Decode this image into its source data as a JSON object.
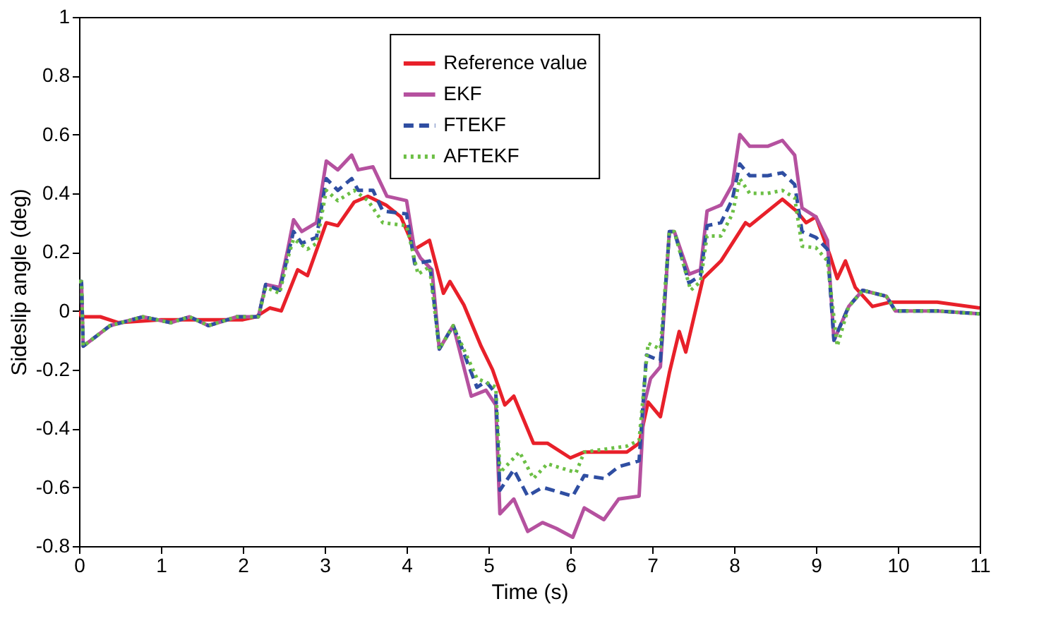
{
  "chart_data": {
    "type": "line",
    "xlabel": "Time (s)",
    "ylabel": "Sideslip angle (deg)",
    "xlim": [
      0,
      11
    ],
    "ylim": [
      -0.8,
      1
    ],
    "xticks": [
      0,
      1,
      2,
      3,
      4,
      5,
      6,
      7,
      8,
      9,
      10,
      11
    ],
    "yticks": [
      -0.8,
      -0.6,
      -0.4,
      -0.2,
      0,
      0.2,
      0.4,
      0.6,
      0.8,
      1
    ],
    "grid": false,
    "legend": "top",
    "marker": "none",
    "series": [
      {
        "name": "Reference value",
        "color": "#e8202a",
        "line_style": "solid",
        "x": [
          0,
          0.03,
          0.26,
          0.48,
          1,
          1.5,
          2,
          2.16,
          2.33,
          2.47,
          2.67,
          2.79,
          3.02,
          3.16,
          3.36,
          3.53,
          3.75,
          3.93,
          4.1,
          4.28,
          4.45,
          4.53,
          4.7,
          4.91,
          5.05,
          5.2,
          5.31,
          5.55,
          5.72,
          6.0,
          6.17,
          6.69,
          6.84,
          6.95,
          7.1,
          7.21,
          7.33,
          7.41,
          7.62,
          7.84,
          8.14,
          8.19,
          8.59,
          8.76,
          8.88,
          9.0,
          9.17,
          9.26,
          9.36,
          9.48,
          9.69,
          9.91,
          10.48,
          11
        ],
        "values": [
          0,
          -0.02,
          -0.02,
          -0.04,
          -0.03,
          -0.03,
          -0.03,
          -0.02,
          0.01,
          0,
          0.14,
          0.12,
          0.3,
          0.29,
          0.37,
          0.39,
          0.36,
          0.32,
          0.21,
          0.24,
          0.06,
          0.1,
          0.02,
          -0.12,
          -0.2,
          -0.32,
          -0.29,
          -0.45,
          -0.45,
          -0.5,
          -0.48,
          -0.48,
          -0.45,
          -0.31,
          -0.36,
          -0.21,
          -0.07,
          -0.14,
          0.11,
          0.17,
          0.3,
          0.29,
          0.38,
          0.34,
          0.3,
          0.32,
          0.19,
          0.11,
          0.17,
          0.08,
          0.015,
          0.03,
          0.03,
          0.01
        ]
      },
      {
        "name": "EKF",
        "color": "#b5519f",
        "line_style": "solid",
        "x": [
          0,
          0.03,
          0.05,
          0.38,
          0.78,
          1.12,
          1.35,
          1.58,
          1.93,
          2.19,
          2.28,
          2.45,
          2.55,
          2.62,
          2.72,
          2.9,
          3.02,
          3.16,
          3.33,
          3.41,
          3.59,
          3.76,
          4.0,
          4.09,
          4.17,
          4.31,
          4.4,
          4.57,
          4.79,
          4.97,
          5.09,
          5.14,
          5.31,
          5.48,
          5.66,
          5.83,
          6.03,
          6.17,
          6.41,
          6.59,
          6.84,
          6.9,
          6.98,
          7.1,
          7.21,
          7.27,
          7.45,
          7.59,
          7.67,
          7.84,
          7.98,
          8.07,
          8.19,
          8.41,
          8.59,
          8.74,
          8.83,
          9.0,
          9.14,
          9.22,
          9.4,
          9.57,
          9.86,
          9.97,
          10.48,
          11
        ],
        "values": [
          0.1,
          0.1,
          -0.12,
          -0.05,
          -0.02,
          -0.04,
          -0.02,
          -0.05,
          -0.02,
          -0.02,
          0.09,
          0.08,
          0.21,
          0.31,
          0.27,
          0.3,
          0.51,
          0.48,
          0.53,
          0.48,
          0.49,
          0.39,
          0.375,
          0.22,
          0.18,
          0.14,
          -0.13,
          -0.05,
          -0.29,
          -0.27,
          -0.32,
          -0.69,
          -0.64,
          -0.75,
          -0.72,
          -0.74,
          -0.77,
          -0.67,
          -0.71,
          -0.64,
          -0.63,
          -0.32,
          -0.23,
          -0.19,
          0.27,
          0.27,
          0.125,
          0.14,
          0.34,
          0.36,
          0.43,
          0.6,
          0.56,
          0.56,
          0.58,
          0.53,
          0.35,
          0.32,
          0.24,
          -0.1,
          0.015,
          0.07,
          0.05,
          0,
          0,
          -0.01
        ]
      },
      {
        "name": "FTEKF",
        "color": "#2f4ea2",
        "line_style": "dashed",
        "x": [
          0,
          0.03,
          0.05,
          0.38,
          0.78,
          1.12,
          1.35,
          1.58,
          1.93,
          2.19,
          2.28,
          2.45,
          2.55,
          2.62,
          2.72,
          2.9,
          3.02,
          3.16,
          3.33,
          3.41,
          3.59,
          3.71,
          4.0,
          4.1,
          4.28,
          4.4,
          4.57,
          4.86,
          4.97,
          5.09,
          5.14,
          5.31,
          5.48,
          5.66,
          6.03,
          6.17,
          6.41,
          6.59,
          6.84,
          6.93,
          7.1,
          7.21,
          7.27,
          7.45,
          7.59,
          7.67,
          7.84,
          7.98,
          8.07,
          8.19,
          8.41,
          8.59,
          8.74,
          8.83,
          9.0,
          9.14,
          9.22,
          9.4,
          9.57,
          9.86,
          9.97,
          10.48,
          11
        ],
        "values": [
          0.1,
          0.1,
          -0.12,
          -0.05,
          -0.02,
          -0.04,
          -0.02,
          -0.05,
          -0.02,
          -0.02,
          0.09,
          0.07,
          0.19,
          0.27,
          0.23,
          0.25,
          0.45,
          0.41,
          0.45,
          0.41,
          0.41,
          0.34,
          0.33,
          0.16,
          0.17,
          -0.13,
          -0.05,
          -0.26,
          -0.24,
          -0.28,
          -0.61,
          -0.54,
          -0.63,
          -0.6,
          -0.63,
          -0.56,
          -0.57,
          -0.53,
          -0.51,
          -0.15,
          -0.17,
          0.27,
          0.27,
          0.095,
          0.12,
          0.29,
          0.3,
          0.38,
          0.5,
          0.46,
          0.46,
          0.47,
          0.43,
          0.27,
          0.25,
          0.21,
          -0.1,
          0.015,
          0.07,
          0.05,
          0,
          0,
          -0.01
        ]
      },
      {
        "name": "AFTEKF",
        "color": "#6cbf45",
        "line_style": "dotted",
        "x": [
          0,
          0.03,
          0.05,
          0.38,
          0.78,
          1.12,
          1.35,
          1.58,
          1.93,
          2.19,
          2.28,
          2.45,
          2.55,
          2.62,
          2.79,
          2.9,
          3.02,
          3.16,
          3.36,
          3.53,
          3.71,
          4.0,
          4.14,
          4.28,
          4.4,
          4.57,
          4.86,
          5.03,
          5.09,
          5.14,
          5.38,
          5.55,
          5.72,
          6.07,
          6.17,
          6.69,
          6.84,
          6.95,
          7.1,
          7.21,
          7.27,
          7.47,
          7.59,
          7.67,
          7.84,
          7.98,
          8.07,
          8.19,
          8.41,
          8.59,
          8.74,
          8.83,
          9.0,
          9.14,
          9.26,
          9.4,
          9.57,
          9.86,
          9.97,
          10.48,
          11
        ],
        "values": [
          0.1,
          0.1,
          -0.12,
          -0.05,
          -0.02,
          -0.04,
          -0.02,
          -0.05,
          -0.02,
          -0.02,
          0.08,
          0.06,
          0.18,
          0.245,
          0.21,
          0.23,
          0.41,
          0.375,
          0.41,
          0.375,
          0.3,
          0.29,
          0.125,
          0.15,
          -0.13,
          -0.05,
          -0.23,
          -0.25,
          -0.26,
          -0.55,
          -0.48,
          -0.57,
          -0.52,
          -0.55,
          -0.48,
          -0.46,
          -0.44,
          -0.11,
          -0.13,
          0.27,
          0.27,
          0.07,
          0.1,
          0.255,
          0.255,
          0.33,
          0.45,
          0.4,
          0.4,
          0.41,
          0.385,
          0.22,
          0.215,
          0.17,
          -0.12,
          0.015,
          0.07,
          0.05,
          0,
          0,
          -0.01
        ]
      }
    ]
  }
}
